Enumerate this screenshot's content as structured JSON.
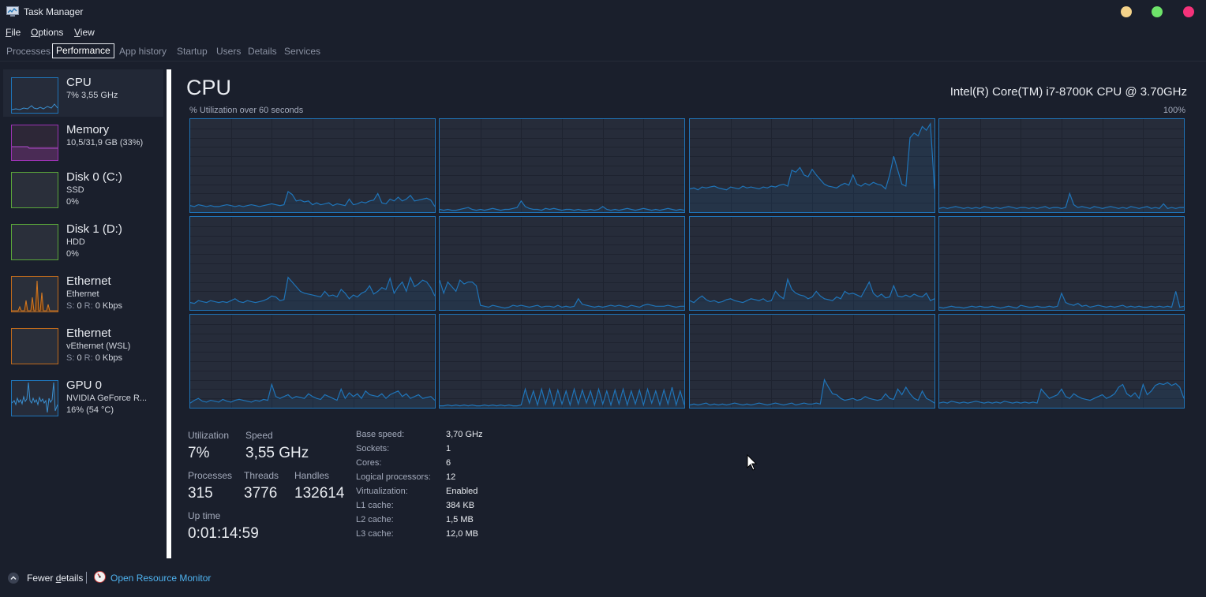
{
  "window": {
    "title": "Task Manager"
  },
  "menu": [
    {
      "key": "F",
      "rest": "ile"
    },
    {
      "key": "O",
      "rest": "ptions"
    },
    {
      "key": "V",
      "rest": "iew"
    }
  ],
  "tabs": [
    "Processes",
    "Performance",
    "App history",
    "Startup",
    "Users",
    "Details",
    "Services"
  ],
  "active_tab": "Performance",
  "sidebar": {
    "items": [
      {
        "title": "CPU",
        "line1": "7% 3,55 GHz",
        "line2": "",
        "color": "#1f74b8"
      },
      {
        "title": "Memory",
        "line1": "10,5/31,9 GB (33%)",
        "line2": "",
        "color": "#9b32b3"
      },
      {
        "title": "Disk 0 (C:)",
        "line1": "SSD",
        "line2": "0%",
        "color": "#5aa63a"
      },
      {
        "title": "Disk 1 (D:)",
        "line1": "HDD",
        "line2": "0%",
        "color": "#5aa63a"
      },
      {
        "title": "Ethernet",
        "line1": "Ethernet",
        "line2_s": "S:",
        "line2_mid": "0",
        "line2_r": "R:",
        "line2_end": "0 Kbps",
        "color": "#c06a1c"
      },
      {
        "title": "Ethernet",
        "line1": "vEthernet (WSL)",
        "line2_s": "S:",
        "line2_mid": "0",
        "line2_r": "R:",
        "line2_end": "0 Kbps",
        "color": "#c06a1c"
      },
      {
        "title": "GPU 0",
        "line1": "NVIDIA GeForce R...",
        "line2": "16%  (54 °C)",
        "color": "#1f74b8"
      }
    ]
  },
  "main": {
    "title": "CPU",
    "model": "Intel(R) Core(TM) i7-8700K CPU @ 3.70GHz",
    "util_label": "% Utilization over 60 seconds",
    "util_max": "100%"
  },
  "chart_data": {
    "type": "line",
    "ylim": [
      0,
      100
    ],
    "series_count": 12,
    "series": [
      {
        "values": [
          7,
          6,
          8,
          7,
          6,
          7,
          6,
          6,
          7,
          8,
          7,
          6,
          7,
          6,
          7,
          8,
          7,
          6,
          7,
          8,
          9,
          8,
          7,
          8,
          22,
          19,
          12,
          13,
          11,
          12,
          8,
          10,
          8,
          9,
          10,
          7,
          9,
          8,
          7,
          14,
          8,
          9,
          11,
          10,
          12,
          13,
          20,
          10,
          9,
          14,
          12,
          16,
          12,
          14,
          18,
          12,
          13,
          14,
          15,
          13,
          6
        ]
      },
      {
        "values": [
          3,
          2,
          3,
          2,
          2,
          3,
          4,
          5,
          3,
          2,
          3,
          2,
          3,
          4,
          3,
          2,
          3,
          3,
          4,
          5,
          12,
          6,
          4,
          3,
          3,
          2,
          4,
          3,
          4,
          3,
          2,
          3,
          3,
          2,
          3,
          2,
          2,
          3,
          2,
          3,
          6,
          3,
          2,
          3,
          2,
          3,
          4,
          3,
          2,
          3,
          4,
          3,
          2,
          3,
          2,
          3,
          4,
          3,
          2,
          3,
          2
        ]
      },
      {
        "values": [
          25,
          26,
          24,
          27,
          26,
          27,
          28,
          26,
          25,
          24,
          27,
          26,
          25,
          28,
          26,
          27,
          26,
          25,
          27,
          26,
          28,
          27,
          29,
          30,
          28,
          45,
          43,
          48,
          40,
          38,
          46,
          40,
          35,
          30,
          28,
          27,
          26,
          29,
          31,
          29,
          40,
          30,
          28,
          31,
          29,
          32,
          30,
          29,
          25,
          40,
          60,
          45,
          30,
          28,
          80,
          85,
          82,
          92,
          88,
          95,
          25
        ]
      },
      {
        "values": [
          4,
          5,
          4,
          5,
          6,
          5,
          4,
          5,
          4,
          5,
          4,
          6,
          5,
          4,
          5,
          4,
          5,
          6,
          5,
          4,
          5,
          5,
          4,
          5,
          4,
          5,
          6,
          4,
          5,
          5,
          4,
          5,
          20,
          8,
          5,
          6,
          5,
          4,
          6,
          5,
          4,
          5,
          6,
          5,
          4,
          5,
          4,
          6,
          5,
          4,
          5,
          6,
          4,
          5,
          4,
          9,
          4,
          5,
          4,
          5,
          5
        ]
      },
      {
        "values": [
          8,
          7,
          10,
          9,
          8,
          10,
          9,
          8,
          9,
          8,
          10,
          12,
          9,
          8,
          10,
          9,
          8,
          9,
          10,
          12,
          15,
          14,
          10,
          11,
          35,
          30,
          25,
          20,
          18,
          17,
          16,
          15,
          14,
          20,
          15,
          16,
          14,
          22,
          18,
          12,
          16,
          14,
          18,
          20,
          26,
          17,
          20,
          24,
          22,
          34,
          18,
          25,
          30,
          20,
          35,
          25,
          28,
          32,
          30,
          24,
          15
        ]
      },
      {
        "values": [
          32,
          18,
          30,
          25,
          20,
          32,
          28,
          30,
          30,
          26,
          5,
          4,
          3,
          5,
          4,
          3,
          2,
          3,
          5,
          4,
          5,
          4,
          3,
          4,
          5,
          3,
          4,
          4,
          3,
          5,
          3,
          4,
          3,
          4,
          12,
          6,
          5,
          4,
          3,
          4,
          3,
          4,
          5,
          4,
          5,
          4,
          3,
          5,
          4,
          3,
          5,
          6,
          5,
          4,
          4,
          4,
          5,
          4,
          3,
          4,
          4
        ]
      },
      {
        "values": [
          10,
          8,
          12,
          15,
          11,
          9,
          10,
          8,
          9,
          11,
          12,
          10,
          9,
          8,
          10,
          12,
          11,
          10,
          12,
          9,
          10,
          20,
          15,
          12,
          33,
          22,
          18,
          16,
          15,
          12,
          14,
          20,
          15,
          12,
          11,
          10,
          14,
          12,
          20,
          17,
          18,
          16,
          14,
          22,
          30,
          18,
          14,
          17,
          13,
          14,
          26,
          15,
          14,
          16,
          14,
          17,
          15,
          14,
          18,
          10,
          12
        ]
      },
      {
        "values": [
          3,
          2,
          3,
          4,
          3,
          3,
          2,
          3,
          4,
          3,
          4,
          3,
          3,
          4,
          3,
          2,
          3,
          4,
          3,
          2,
          5,
          4,
          3,
          3,
          4,
          3,
          3,
          4,
          3,
          4,
          18,
          8,
          6,
          5,
          7,
          4,
          5,
          3,
          4,
          5,
          4,
          3,
          4,
          3,
          4,
          5,
          3,
          4,
          3,
          4,
          3,
          3,
          4,
          3,
          4,
          3,
          4,
          3,
          20,
          3,
          4
        ]
      },
      {
        "values": [
          5,
          8,
          10,
          7,
          6,
          8,
          7,
          6,
          9,
          7,
          6,
          8,
          9,
          8,
          7,
          6,
          8,
          7,
          9,
          8,
          25,
          12,
          10,
          12,
          14,
          10,
          12,
          11,
          10,
          15,
          12,
          10,
          9,
          14,
          12,
          10,
          8,
          20,
          10,
          16,
          12,
          15,
          10,
          18,
          14,
          13,
          12,
          15,
          10,
          14,
          16,
          18,
          12,
          15,
          10,
          12,
          14,
          10,
          11,
          12,
          8
        ]
      },
      {
        "values": [
          2,
          2,
          3,
          2,
          3,
          2,
          3,
          2,
          3,
          2,
          2,
          3,
          2,
          3,
          2,
          3,
          2,
          3,
          2,
          2,
          3,
          20,
          5,
          18,
          3,
          20,
          4,
          20,
          3,
          19,
          4,
          18,
          3,
          20,
          4,
          19,
          5,
          18,
          3,
          20,
          4,
          18,
          3,
          19,
          4,
          20,
          3,
          18,
          4,
          19,
          3,
          20,
          5,
          18,
          3,
          19,
          4,
          22,
          3,
          18,
          3
        ]
      },
      {
        "values": [
          3,
          4,
          3,
          4,
          5,
          3,
          4,
          3,
          4,
          3,
          4,
          5,
          4,
          3,
          4,
          3,
          4,
          5,
          4,
          3,
          4,
          5,
          4,
          3,
          4,
          5,
          3,
          4,
          5,
          4,
          4,
          5,
          4,
          30,
          22,
          15,
          14,
          10,
          8,
          9,
          10,
          8,
          9,
          12,
          10,
          9,
          8,
          9,
          15,
          10,
          9,
          20,
          14,
          22,
          15,
          10,
          8,
          18,
          10,
          8,
          5
        ]
      },
      {
        "values": [
          5,
          6,
          5,
          7,
          6,
          5,
          6,
          5,
          6,
          7,
          6,
          5,
          6,
          5,
          6,
          5,
          7,
          6,
          5,
          6,
          5,
          6,
          5,
          6,
          5,
          20,
          15,
          10,
          12,
          14,
          20,
          12,
          10,
          15,
          12,
          10,
          9,
          8,
          10,
          12,
          14,
          10,
          12,
          15,
          22,
          25,
          15,
          12,
          16,
          10,
          25,
          14,
          18,
          24,
          26,
          25,
          27,
          24,
          26,
          22,
          10
        ]
      }
    ]
  },
  "stats": {
    "utilization_label": "Utilization",
    "utilization": "7%",
    "speed_label": "Speed",
    "speed": "3,55 GHz",
    "processes_label": "Processes",
    "processes": "315",
    "threads_label": "Threads",
    "threads": "3776",
    "handles_label": "Handles",
    "handles": "132614",
    "uptime_label": "Up time",
    "uptime": "0:01:14:59"
  },
  "specs": [
    {
      "key": "Base speed:",
      "value": "3,70 GHz"
    },
    {
      "key": "Sockets:",
      "value": "1"
    },
    {
      "key": "Cores:",
      "value": "6"
    },
    {
      "key": "Logical processors:",
      "value": "12"
    },
    {
      "key": "Virtualization:",
      "value": "Enabled"
    },
    {
      "key": "L1 cache:",
      "value": "384 KB"
    },
    {
      "key": "L2 cache:",
      "value": "1,5 MB"
    },
    {
      "key": "L3 cache:",
      "value": "12,0 MB"
    }
  ],
  "footer": {
    "fewer_pre": "Fewer ",
    "fewer_key": "d",
    "fewer_post": "etails",
    "resource_monitor": "Open Resource Monitor"
  },
  "colors": {
    "accent": "#1f74b8",
    "link": "#4fb3f0",
    "background": "#1a1f2c"
  }
}
